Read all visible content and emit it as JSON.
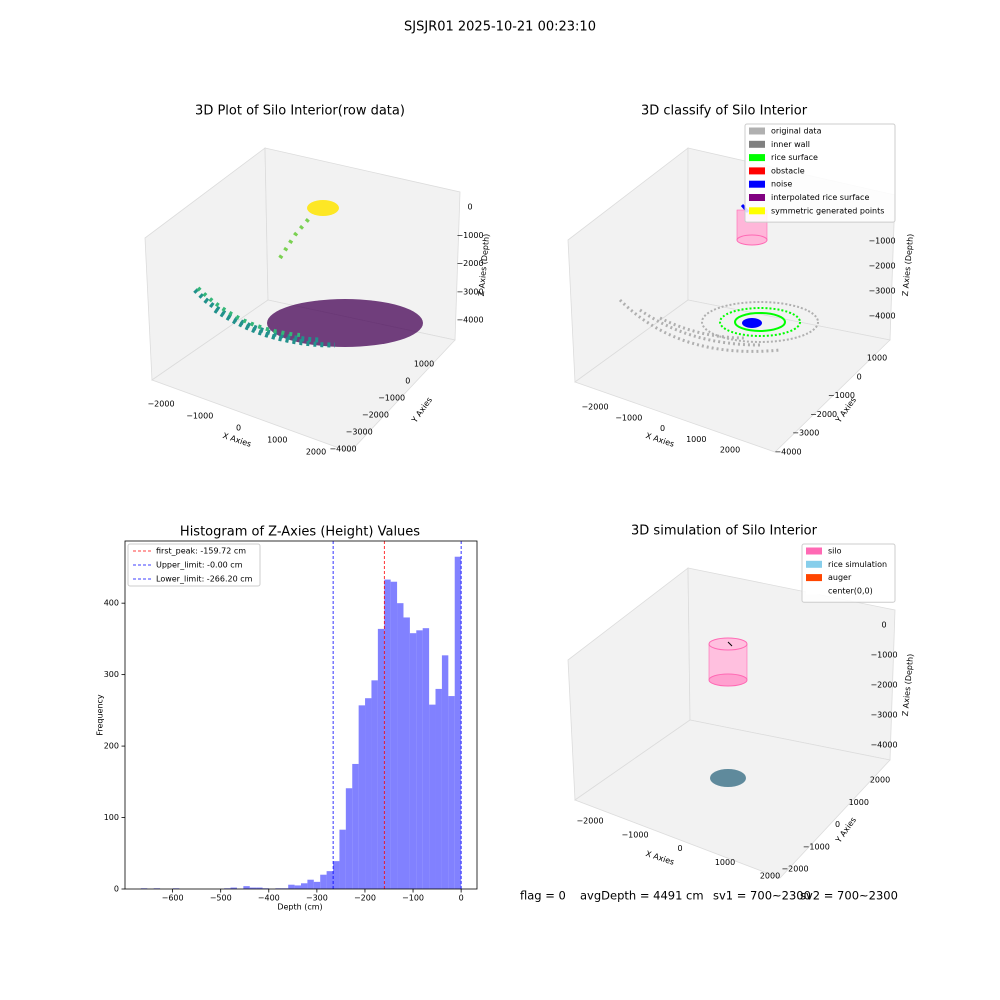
{
  "suptitle": "SJSJR01 2025-10-21 00:23:10",
  "chart_data": [
    {
      "type": "scatter3d",
      "title": "3D Plot of Silo Interior(row data)",
      "xlabel": "X Axies",
      "ylabel": "Y Axies",
      "zlabel": "Z Axies (Depth)",
      "xticks": [
        {
          "value": -2000,
          "label": "−2000"
        },
        {
          "value": -1000,
          "label": "−1000"
        },
        0,
        1000,
        2000
      ],
      "yticks": [
        1000,
        0,
        {
          "value": -1000,
          "label": "−1000"
        },
        {
          "value": -2000,
          "label": "−2000"
        },
        {
          "value": -3000,
          "label": "−3000"
        },
        {
          "value": -4000,
          "label": "−4000"
        }
      ],
      "zticks": [
        0,
        {
          "value": -1000,
          "label": "−1000"
        },
        {
          "value": -2000,
          "label": "−2000"
        },
        {
          "value": -3000,
          "label": "−3000"
        },
        {
          "value": -4000,
          "label": "−4000"
        }
      ],
      "legend": []
    },
    {
      "type": "scatter3d",
      "title": "3D classify of Silo Interior",
      "xlabel": "X Axies",
      "ylabel": "Y Axies",
      "zlabel": "Z Axies (Depth)",
      "xticks": [
        {
          "value": -2000,
          "label": "−2000"
        },
        {
          "value": -1000,
          "label": "−1000"
        },
        0,
        1000,
        2000
      ],
      "yticks": [
        1000,
        0,
        {
          "value": -1000,
          "label": "−1000"
        },
        {
          "value": -2000,
          "label": "−2000"
        },
        {
          "value": -3000,
          "label": "−3000"
        },
        {
          "value": -4000,
          "label": "−4000"
        }
      ],
      "zticks": [
        {
          "value": -1000,
          "label": "−1000"
        },
        {
          "value": -2000,
          "label": "−2000"
        },
        {
          "value": -3000,
          "label": "−3000"
        },
        {
          "value": -4000,
          "label": "−4000"
        }
      ],
      "legend": [
        {
          "name": "original data",
          "color": "#b0b0b0"
        },
        {
          "name": "inner wall",
          "color": "#808080"
        },
        {
          "name": "rice surface",
          "color": "#00ff00"
        },
        {
          "name": "obstacle",
          "color": "#ff0000"
        },
        {
          "name": "noise",
          "color": "#0000ff"
        },
        {
          "name": "interpolated rice surface",
          "color": "#800080"
        },
        {
          "name": "symmetric generated points",
          "color": "#ffff00"
        }
      ]
    },
    {
      "type": "histogram",
      "title": "Histogram of Z-Axies (Height) Values",
      "xlabel": "Depth (cm)",
      "ylabel": "Frequency",
      "color": "#4b4bff",
      "bins": [
        -666,
        -652.68,
        -639.36,
        -626.04,
        -612.72,
        -599.4,
        -586.08,
        -572.76,
        -559.44,
        -546.12,
        -532.8,
        -519.48,
        -506.16,
        -492.84,
        -479.52,
        -466.2,
        -452.88,
        -439.56,
        -426.24,
        -412.92,
        -399.6,
        -386.28,
        -372.96,
        -359.64,
        -346.32,
        -333,
        -319.68,
        -306.36,
        -293.04,
        -279.72,
        -266.4,
        -253.08,
        -239.76,
        -226.44,
        -213.12,
        -199.8,
        -186.48,
        -173.16,
        -159.84,
        -146.52,
        -133.2,
        -119.88,
        -106.56,
        -93.24,
        -79.92,
        -66.6,
        -53.28,
        -39.96,
        -26.64,
        -13.32,
        0
      ],
      "values": [
        1,
        0,
        1,
        0,
        0,
        1,
        0,
        0,
        0,
        0,
        0,
        0,
        0,
        1,
        2,
        0,
        4,
        2,
        2,
        1,
        0,
        1,
        1,
        6,
        5,
        8,
        13,
        10,
        20,
        25,
        39,
        83,
        141,
        175,
        257,
        267,
        292,
        364,
        433,
        430,
        400,
        380,
        358,
        362,
        365,
        258,
        280,
        327,
        270,
        465
      ],
      "vlines": [
        {
          "value": -159.72,
          "label": "first_peak: -159.72 cm",
          "color": "#ff0000"
        },
        {
          "value": 0,
          "label": "Upper_limit: -0.00 cm",
          "color": "#0000ff"
        },
        {
          "value": -266.2,
          "label": "Lower_limit: -266.20 cm",
          "color": "#0000ff"
        }
      ],
      "xlim": [
        -699,
        33
      ],
      "ylim": [
        0,
        487
      ],
      "xticks": [
        {
          "value": -600,
          "label": "−600"
        },
        {
          "value": -500,
          "label": "−500"
        },
        {
          "value": -400,
          "label": "−400"
        },
        {
          "value": -300,
          "label": "−300"
        },
        {
          "value": -200,
          "label": "−200"
        },
        {
          "value": -100,
          "label": "−100"
        },
        0
      ],
      "yticks": [
        0,
        100,
        200,
        300,
        400
      ],
      "grid": false
    },
    {
      "type": "scatter3d",
      "title": "3D simulation of Silo Interior",
      "xlabel": "X Axies",
      "ylabel": "Y Axies",
      "zlabel": "Z Axies (Depth)",
      "xticks": [
        {
          "value": -2000,
          "label": "−2000"
        },
        {
          "value": -1000,
          "label": "−1000"
        },
        0,
        1000,
        2000
      ],
      "yticks": [
        2000,
        1000,
        0,
        {
          "value": -1000,
          "label": "−1000"
        },
        {
          "value": -2000,
          "label": "−2000"
        }
      ],
      "zticks": [
        0,
        {
          "value": -1000,
          "label": "−1000"
        },
        {
          "value": -2000,
          "label": "−2000"
        },
        {
          "value": -3000,
          "label": "−3000"
        },
        {
          "value": -4000,
          "label": "−4000"
        }
      ],
      "legend": [
        {
          "name": "silo",
          "color": "#ff69b4"
        },
        {
          "name": "rice simulation",
          "color": "#87ceeb"
        },
        {
          "name": "auger",
          "color": "#ff4500"
        },
        {
          "name": "center(0,0)",
          "color": "#ffffff"
        }
      ]
    }
  ],
  "footer": [
    "flag = 0",
    "avgDepth = 4491 cm",
    "sv1 = 700~2300",
    "sv2 = 700~2300"
  ]
}
